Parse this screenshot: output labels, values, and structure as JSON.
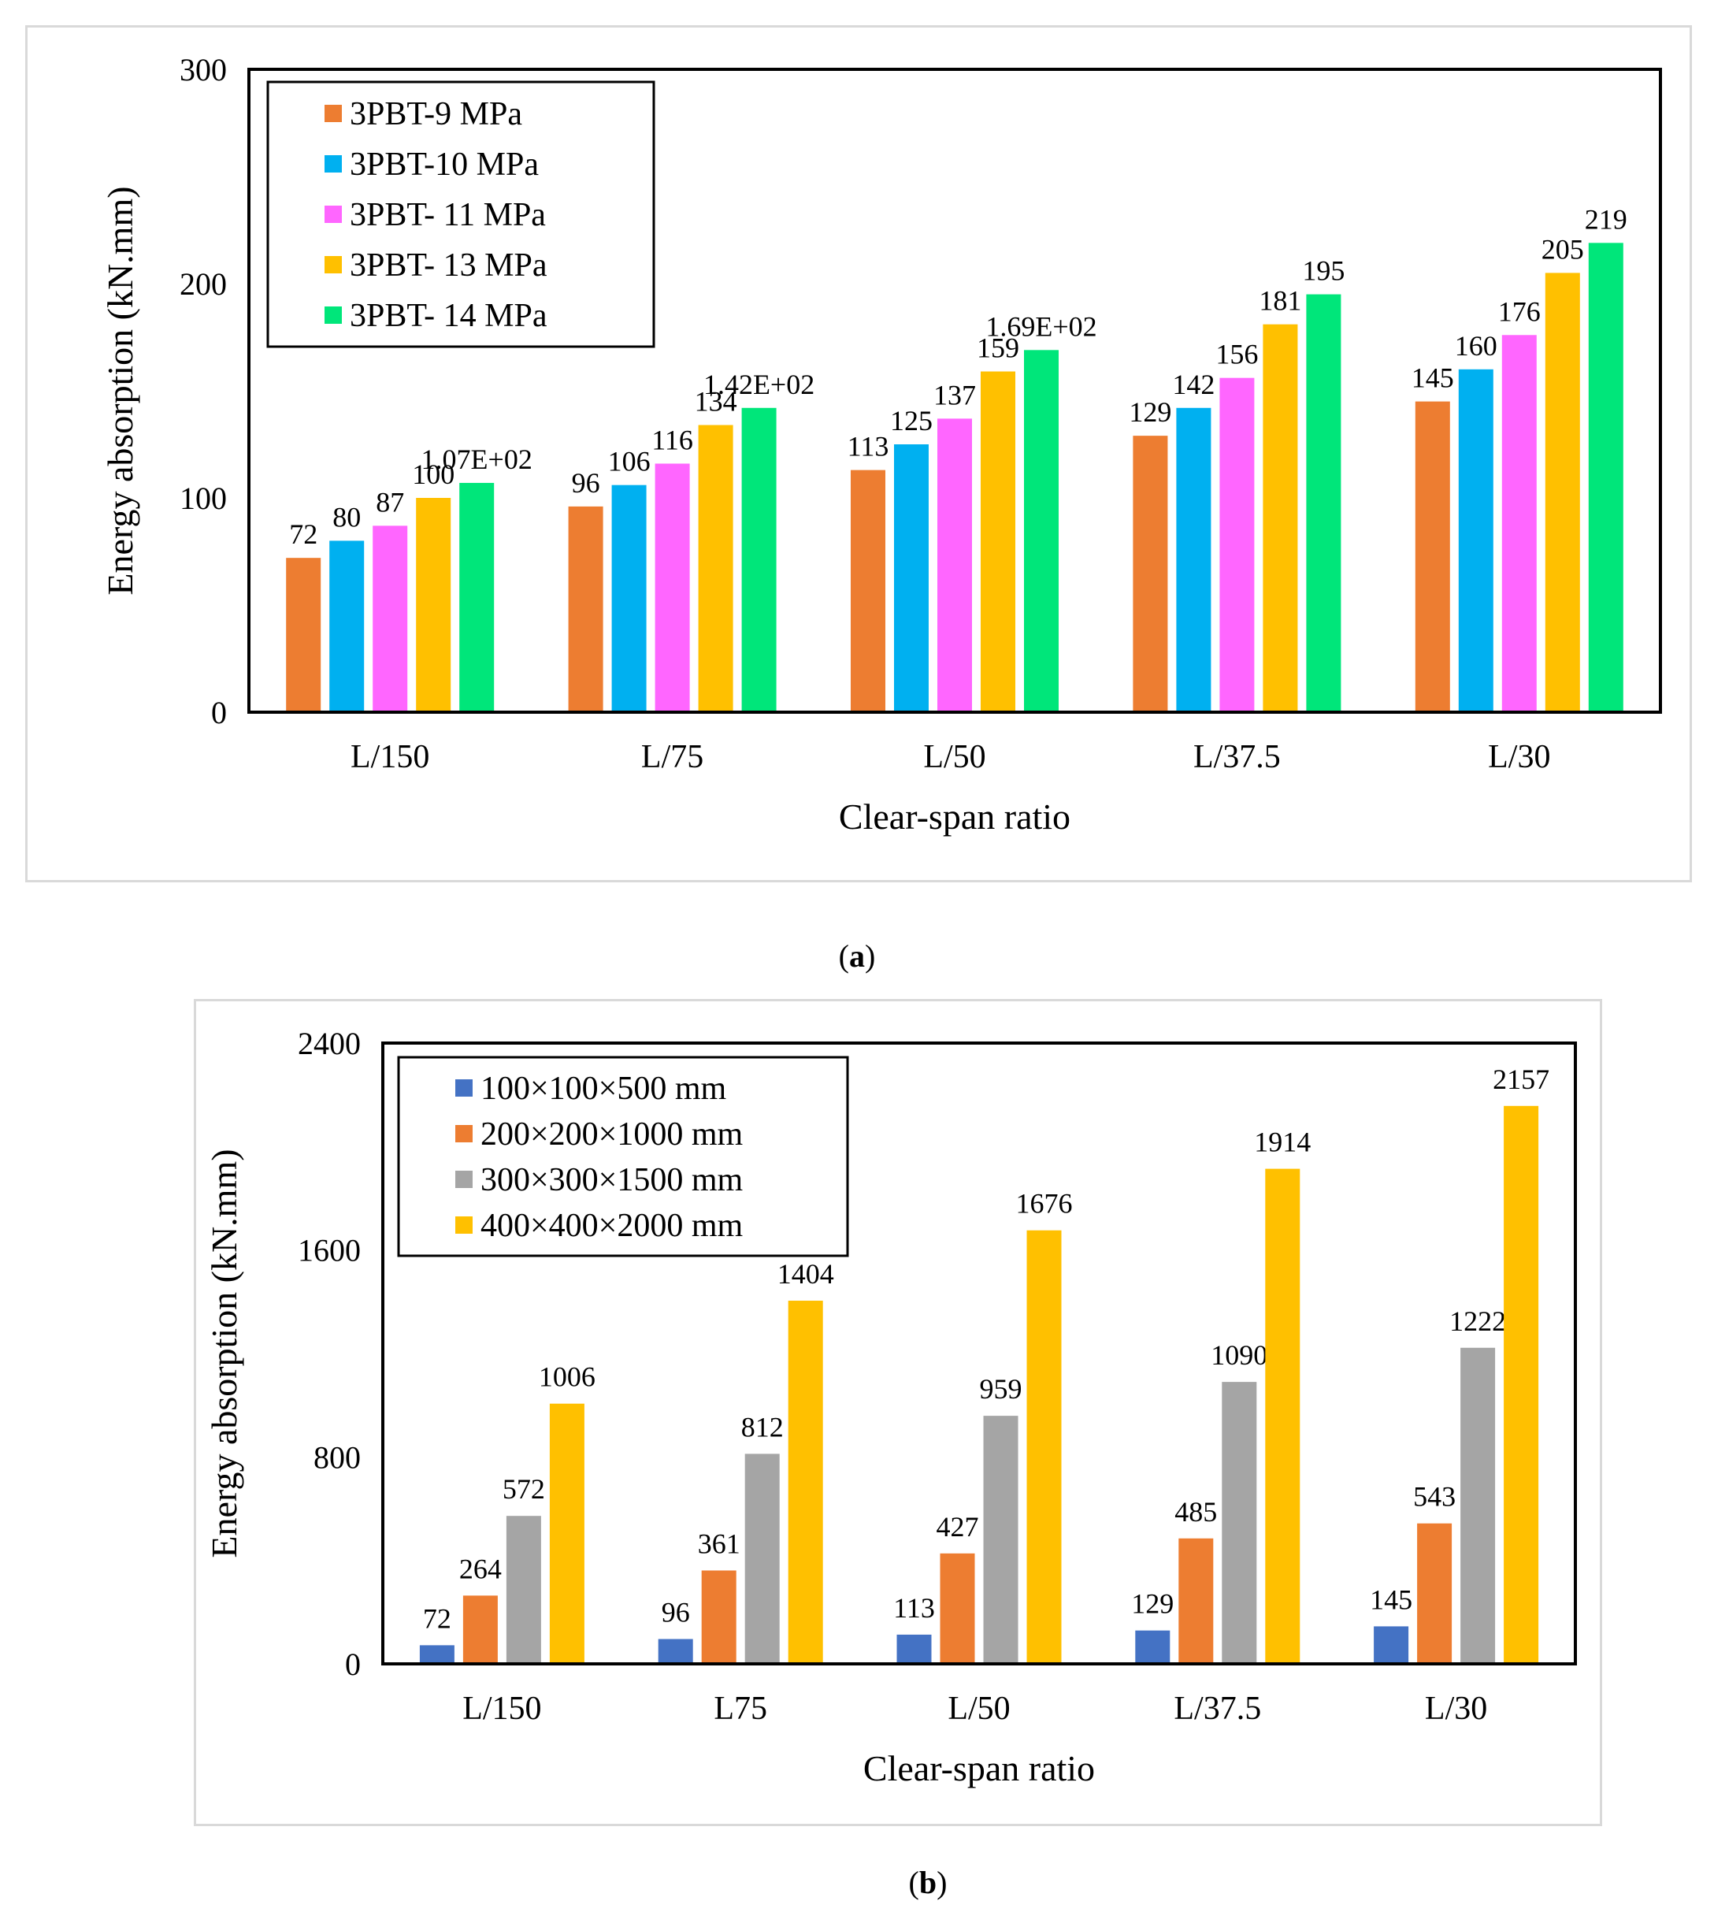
{
  "captions": {
    "a": "a",
    "b": "b"
  },
  "chart_data": [
    {
      "id": "a",
      "type": "bar",
      "title": "",
      "xlabel": "Clear-span ratio",
      "ylabel": "Energy absorption (kN.mm)",
      "ylim": [
        0,
        300
      ],
      "yticks": [
        0,
        100,
        200,
        300
      ],
      "grid": false,
      "legend_position": "top-left",
      "categories": [
        "L/150",
        "L/75",
        "L/50",
        "L/37.5",
        "L/30"
      ],
      "series": [
        {
          "name": "3PBT-9 MPa",
          "color": "#ED7D31",
          "values": [
            72,
            96,
            113,
            129,
            145
          ],
          "labels": [
            "72",
            "96",
            "113",
            "129",
            "145"
          ]
        },
        {
          "name": "3PBT-10 MPa",
          "color": "#00B0F0",
          "values": [
            80,
            106,
            125,
            142,
            160
          ],
          "labels": [
            "80",
            "106",
            "125",
            "142",
            "160"
          ]
        },
        {
          "name": "3PBT- 11 MPa",
          "color": "#FF66FF",
          "values": [
            87,
            116,
            137,
            156,
            176
          ],
          "labels": [
            "87",
            "116",
            "137",
            "156",
            "176"
          ]
        },
        {
          "name": "3PBT- 13 MPa",
          "color": "#FFC000",
          "values": [
            100,
            134,
            159,
            181,
            205
          ],
          "labels": [
            "100",
            "134",
            "159",
            "181",
            "205"
          ]
        },
        {
          "name": "3PBT- 14 MPa",
          "color": "#00E67A",
          "values": [
            107,
            142,
            169,
            195,
            219
          ],
          "labels": [
            "1.07E+02",
            "1.42E+02",
            "1.69E+02",
            "195",
            "219"
          ]
        }
      ]
    },
    {
      "id": "b",
      "type": "bar",
      "title": "",
      "xlabel": "Clear-span ratio",
      "ylabel": "Energy absorption (kN.mm)",
      "ylim": [
        0,
        2400
      ],
      "yticks": [
        0,
        800,
        1600,
        2400
      ],
      "grid": false,
      "legend_position": "top-left",
      "categories": [
        "L/150",
        "L75",
        "L/50",
        "L/37.5",
        "L/30"
      ],
      "series": [
        {
          "name": "100×100×500 mm",
          "color": "#4472C4",
          "values": [
            72,
            96,
            113,
            129,
            145
          ],
          "labels": [
            "72",
            "96",
            "113",
            "129",
            "145"
          ]
        },
        {
          "name": "200×200×1000 mm",
          "color": "#ED7D31",
          "values": [
            264,
            361,
            427,
            485,
            543
          ],
          "labels": [
            "264",
            "361",
            "427",
            "485",
            "543"
          ]
        },
        {
          "name": "300×300×1500 mm",
          "color": "#A5A5A5",
          "values": [
            572,
            812,
            959,
            1090,
            1222
          ],
          "labels": [
            "572",
            "812",
            "959",
            "1090",
            "1222"
          ]
        },
        {
          "name": "400×400×2000 mm",
          "color": "#FFC000",
          "values": [
            1006,
            1404,
            1676,
            1914,
            2157
          ],
          "labels": [
            "1006",
            "1404",
            "1676",
            "1914",
            "2157"
          ]
        }
      ]
    }
  ]
}
